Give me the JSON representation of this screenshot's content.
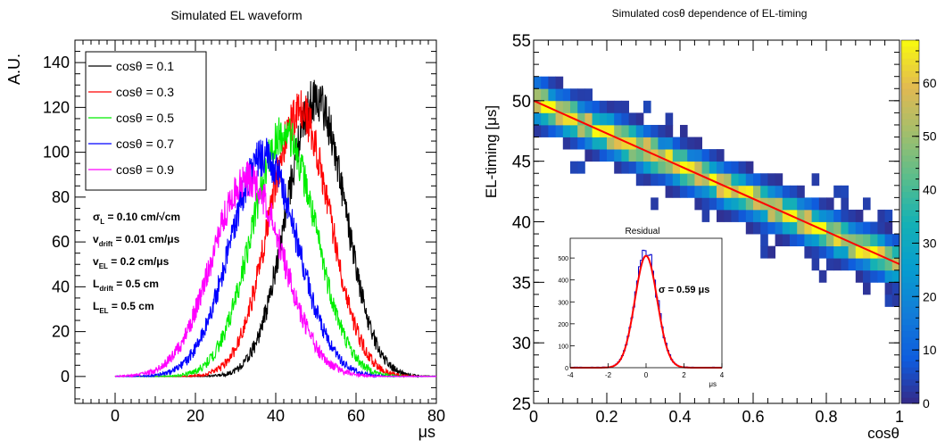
{
  "chart_data": [
    {
      "type": "line",
      "title": "Simulated EL waveform",
      "xlabel": "μs",
      "ylabel": "A.U.",
      "xlim": [
        -10,
        80
      ],
      "ylim": [
        -12,
        150
      ],
      "xticks": [
        "0",
        "20",
        "40",
        "60",
        "80"
      ],
      "xtick_values": [
        0,
        20,
        40,
        60,
        80
      ],
      "yticks": [
        "0",
        "20",
        "40",
        "60",
        "80",
        "100",
        "120",
        "140"
      ],
      "ytick_values": [
        0,
        20,
        40,
        60,
        80,
        100,
        120,
        140
      ],
      "legend_position": "top-left",
      "series": [
        {
          "name": "cosθ = 0.1",
          "color": "#000000",
          "peak_x": 50,
          "peak_y": 124,
          "sigma": 7.3
        },
        {
          "name": "cosθ = 0.3",
          "color": "#ff0000",
          "peak_x": 46,
          "peak_y": 118,
          "sigma": 7.6
        },
        {
          "name": "cosθ = 0.5",
          "color": "#00ee00",
          "peak_x": 42,
          "peak_y": 108,
          "sigma": 8.0
        },
        {
          "name": "cosθ = 0.7",
          "color": "#0000ff",
          "peak_x": 37,
          "peak_y": 98,
          "sigma": 8.4
        },
        {
          "name": "cosθ = 0.9",
          "color": "#ff00ff",
          "peak_x": 33,
          "peak_y": 88,
          "sigma": 8.8
        }
      ],
      "x_range": [
        0,
        80
      ],
      "annotations": [
        {
          "main": "σ",
          "sub": "L",
          "rest": " = 0.10 cm/√cm"
        },
        {
          "main": "v",
          "sub": "drift",
          "rest": " = 0.01 cm/μs"
        },
        {
          "main": "v",
          "sub": "EL",
          "rest": " = 0.2 cm/μs"
        },
        {
          "main": "L",
          "sub": "drift",
          "rest": " = 0.5 cm"
        },
        {
          "main": "L",
          "sub": "EL",
          "rest": " = 0.5 cm"
        }
      ]
    },
    {
      "type": "heatmap",
      "title": "Simulated cosθ dependence of EL-timing",
      "xlabel": "cosθ",
      "ylabel": "EL-timing [μs]",
      "xlim": [
        0,
        1
      ],
      "ylim": [
        25,
        55
      ],
      "xticks": [
        "0",
        "0.2",
        "0.4",
        "0.6",
        "0.8",
        "1"
      ],
      "xtick_values": [
        0,
        0.2,
        0.4,
        0.6,
        0.8,
        1
      ],
      "yticks": [
        "25",
        "30",
        "35",
        "40",
        "45",
        "50",
        "55"
      ],
      "ytick_values": [
        25,
        30,
        35,
        40,
        45,
        50,
        55
      ],
      "colorbar": {
        "min": 0,
        "max": 68,
        "ticks": [
          "0",
          "10",
          "20",
          "30",
          "40",
          "50",
          "60"
        ],
        "tick_values": [
          0,
          10,
          20,
          30,
          40,
          50,
          60
        ]
      },
      "fit_line": {
        "x": [
          0,
          1
        ],
        "y": [
          50.0,
          36.5
        ],
        "color": "#ff0000"
      },
      "band": {
        "x_bins": 50,
        "y_bin_width": 1.0,
        "center_at_0": 50.0,
        "center_at_1": 36.5,
        "sigma": 0.9,
        "peak_count": 62
      },
      "inset": {
        "title": "Residual",
        "xlabel": "μs",
        "xlim": [
          -4,
          4
        ],
        "ylim": [
          0,
          590
        ],
        "xticks": [
          "-4",
          "-2",
          "0",
          "2",
          "4"
        ],
        "xtick_values": [
          -4,
          -2,
          0,
          2,
          4
        ],
        "yticks": [
          "0",
          "100",
          "200",
          "300",
          "400",
          "500"
        ],
        "ytick_values": [
          0,
          100,
          200,
          300,
          400,
          500
        ],
        "hist_peak": 530,
        "fit_peak": 510,
        "sigma": 0.59,
        "annotation": "σ = 0.59 μs"
      }
    }
  ]
}
